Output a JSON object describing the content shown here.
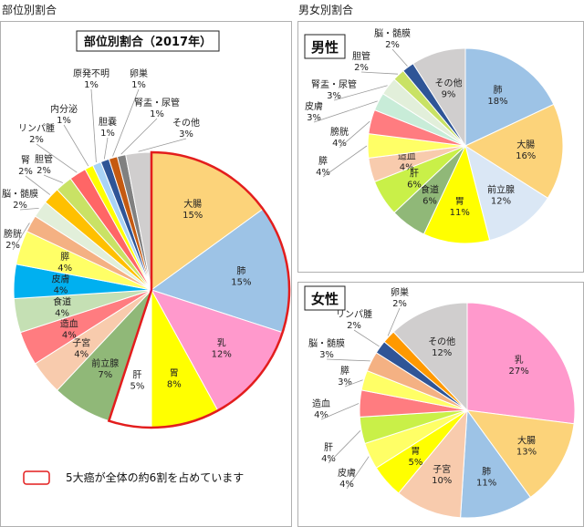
{
  "sections": {
    "left_title": "部位別割合",
    "right_title": "男女別割合"
  },
  "colors": {
    "callout_border": "#e31d1d",
    "panel_border": "#b0b0b0"
  },
  "callout": {
    "text": "5大癌が全体の約6割を占めています"
  },
  "chart_data": [
    {
      "type": "pie",
      "title": "部位別割合（2017年）",
      "unit": "%",
      "labels": [
        "大腸",
        "肺",
        "乳",
        "胃",
        "肝",
        "前立腺",
        "子宮",
        "造血",
        "食道",
        "皮膚",
        "膵",
        "膀胱",
        "脳・髄膜",
        "腎",
        "胆管",
        "リンパ腫",
        "内分泌",
        "原発不明",
        "胆嚢",
        "卵巣",
        "腎盂・尿管",
        "その他"
      ],
      "values": [
        15,
        15,
        12,
        8,
        5,
        7,
        4,
        4,
        4,
        4,
        4,
        2,
        2,
        2,
        2,
        2,
        1,
        1,
        1,
        1,
        1,
        3
      ],
      "colors": [
        "#fcd37a",
        "#9dc3e6",
        "#ff99cc",
        "#ffff00",
        "#ffffff",
        "#90b878",
        "#f8cbad",
        "#ff7c80",
        "#c5e0b4",
        "#00b0f0",
        "#ffff66",
        "#f4b183",
        "#e2efda",
        "#ffc000",
        "#c9e265",
        "#ff6666",
        "#ffff00",
        "#a9d3f5",
        "#2f5597",
        "#c55a11",
        "#808080",
        "#d0cece"
      ],
      "highlight_labels": [
        "大腸",
        "肺",
        "乳",
        "胃",
        "肝"
      ]
    },
    {
      "type": "pie",
      "title": "男性",
      "unit": "%",
      "labels": [
        "肺",
        "大腸",
        "前立腺",
        "胃",
        "食道",
        "肝",
        "造血",
        "膵",
        "膀胱",
        "皮膚",
        "腎盂・尿管",
        "胆管",
        "脳・髄膜",
        "その他"
      ],
      "values": [
        18,
        16,
        12,
        11,
        6,
        6,
        4,
        4,
        4,
        3,
        3,
        2,
        2,
        9
      ],
      "colors": [
        "#9dc3e6",
        "#fcd37a",
        "#dae7f5",
        "#ffff00",
        "#90b878",
        "#c9f048",
        "#f8cbad",
        "#ffff66",
        "#ff7c80",
        "#c8ecd8",
        "#e2efda",
        "#c9e265",
        "#2f5597",
        "#d0cece"
      ]
    },
    {
      "type": "pie",
      "title": "女性",
      "unit": "%",
      "labels": [
        "乳",
        "大腸",
        "肺",
        "子宮",
        "胃",
        "皮膚",
        "肝",
        "造血",
        "膵",
        "脳・髄膜",
        "リンパ腫",
        "卵巣",
        "その他"
      ],
      "values": [
        27,
        13,
        11,
        10,
        5,
        4,
        4,
        4,
        3,
        3,
        2,
        2,
        12
      ],
      "colors": [
        "#ff99cc",
        "#fcd37a",
        "#9dc3e6",
        "#f8cbad",
        "#ffff00",
        "#ffff66",
        "#c9f048",
        "#ff7c80",
        "#ffff66",
        "#f4b183",
        "#2f5597",
        "#ff9900",
        "#d0cece"
      ]
    }
  ]
}
